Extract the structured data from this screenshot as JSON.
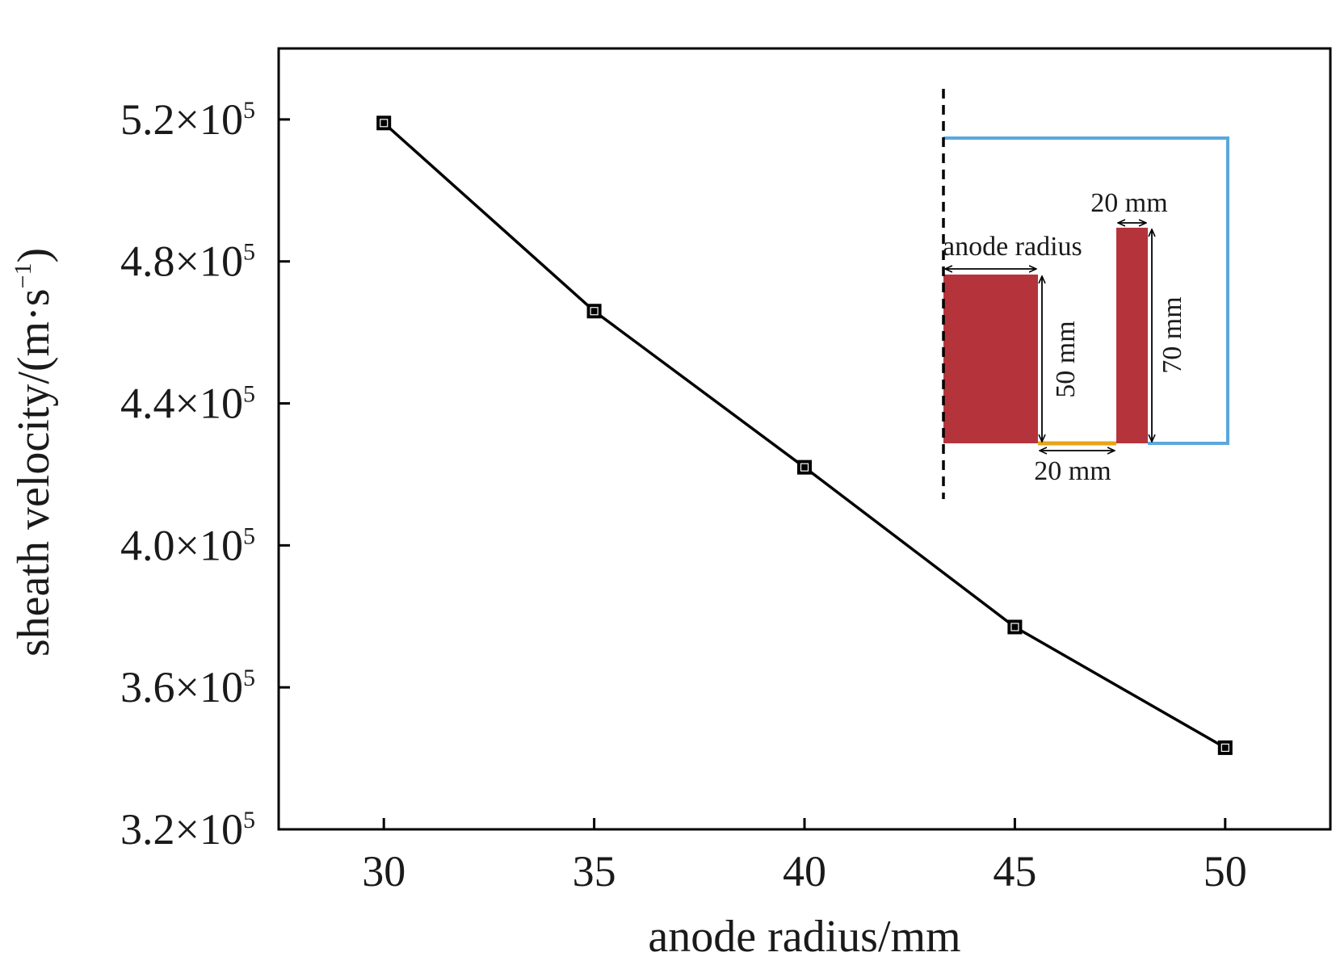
{
  "chart_data": {
    "type": "line",
    "xlabel": "anode radius/mm",
    "ylabel": {
      "main": "sheath velocity/(m·s",
      "exponent": "−1",
      "close": ")"
    },
    "xlim": [
      27.5,
      52.5
    ],
    "ylim": [
      320000,
      540000
    ],
    "x_ticks": [
      {
        "value": 30,
        "label": "30"
      },
      {
        "value": 35,
        "label": "35"
      },
      {
        "value": 40,
        "label": "40"
      },
      {
        "value": 45,
        "label": "45"
      },
      {
        "value": 50,
        "label": "50"
      }
    ],
    "y_ticks": [
      {
        "value": 320000,
        "mantissa": "3.2×10",
        "exponent": "5"
      },
      {
        "value": 360000,
        "mantissa": "3.6×10",
        "exponent": "5"
      },
      {
        "value": 400000,
        "mantissa": "4.0×10",
        "exponent": "5"
      },
      {
        "value": 440000,
        "mantissa": "4.4×10",
        "exponent": "5"
      },
      {
        "value": 480000,
        "mantissa": "4.8×10",
        "exponent": "5"
      },
      {
        "value": 520000,
        "mantissa": "5.2×10",
        "exponent": "5"
      }
    ],
    "series": [
      {
        "marker": "square",
        "color": "#000000",
        "points": [
          {
            "x": 30,
            "y": 519000
          },
          {
            "x": 35,
            "y": 466000
          },
          {
            "x": 40,
            "y": 422000
          },
          {
            "x": 45,
            "y": 377000
          },
          {
            "x": 50,
            "y": 343000
          }
        ]
      }
    ],
    "inset": {
      "labels": {
        "anode_radius": "anode radius",
        "gap_width": "20 mm",
        "anode_height": "50 mm",
        "cathode_width": "20 mm",
        "cathode_height": "70 mm"
      },
      "colors": {
        "electrode": "#b5343c",
        "boundary": "#5aa8dc",
        "insulator": "#e8a317",
        "axis": "#000000"
      }
    }
  }
}
